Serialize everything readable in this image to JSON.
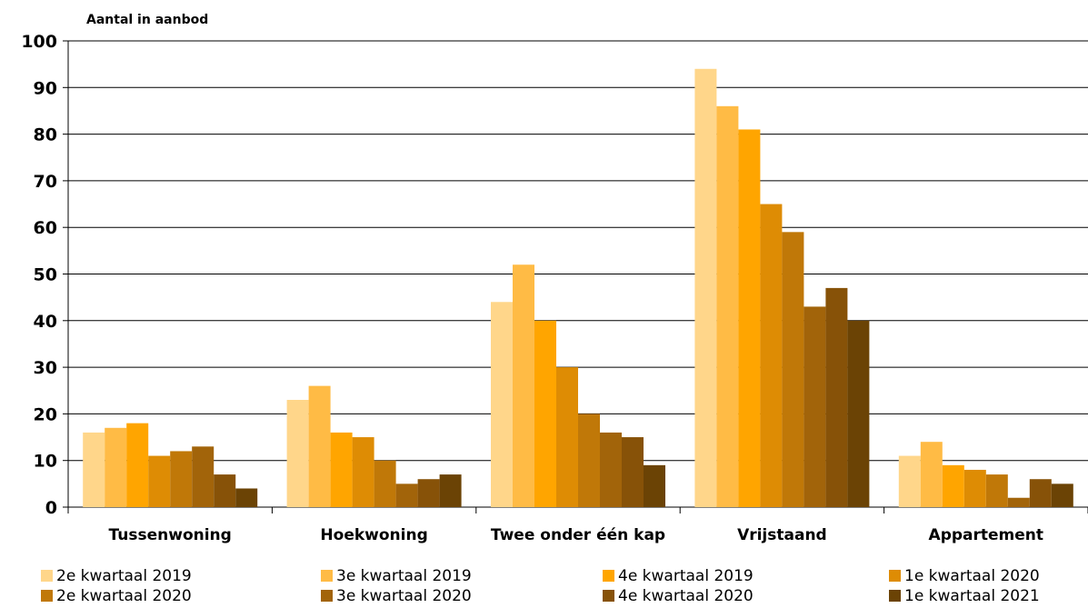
{
  "chart_data": {
    "type": "bar",
    "ylabel": "Aantal in aanbod",
    "ylim": [
      0,
      100
    ],
    "yticks": [
      0,
      10,
      20,
      30,
      40,
      50,
      60,
      70,
      80,
      90,
      100
    ],
    "grid": true,
    "legend_position": "bottom",
    "categories": [
      "Tussenwoning",
      "Hoekwoning",
      "Twee onder één kap",
      "Vrijstaand",
      "Appartement"
    ],
    "series": [
      {
        "name": "2e kwartaal 2019",
        "color": "#FFD68A",
        "values": [
          16,
          23,
          44,
          94,
          11
        ]
      },
      {
        "name": "3e kwartaal 2019",
        "color": "#FFBB45",
        "values": [
          17,
          26,
          52,
          86,
          14
        ]
      },
      {
        "name": "4e kwartaal 2019",
        "color": "#FFA500",
        "values": [
          18,
          16,
          40,
          81,
          9
        ]
      },
      {
        "name": "1e kwartaal 2020",
        "color": "#DE8C04",
        "values": [
          11,
          15,
          30,
          65,
          8
        ]
      },
      {
        "name": "2e kwartaal 2020",
        "color": "#C07808",
        "values": [
          12,
          10,
          20,
          59,
          7
        ]
      },
      {
        "name": "3e kwartaal 2020",
        "color": "#A2640A",
        "values": [
          13,
          5,
          16,
          43,
          2
        ]
      },
      {
        "name": "4e kwartaal 2020",
        "color": "#875208",
        "values": [
          7,
          6,
          15,
          47,
          6
        ]
      },
      {
        "name": "1e kwartaal 2021",
        "color": "#6B4305",
        "values": [
          4,
          7,
          9,
          40,
          5
        ]
      }
    ]
  }
}
